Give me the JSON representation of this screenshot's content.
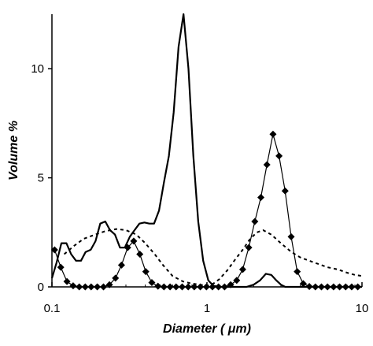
{
  "chart_data": {
    "type": "line",
    "xlabel": "Diameter ( μm)",
    "ylabel": "Volume %",
    "xscale": "log",
    "xlim": [
      0.1,
      10
    ],
    "ylim": [
      0,
      12.5
    ],
    "x_ticks": [
      0.1,
      1,
      10
    ],
    "x_tick_labels": [
      "0.1",
      "1",
      "10"
    ],
    "y_ticks": [
      0,
      5,
      10
    ],
    "y_tick_labels": [
      "0",
      "5",
      "10"
    ],
    "grid": false,
    "legend": "none",
    "series": [
      {
        "style": "solid-thick",
        "color": "#000000",
        "points": [
          [
            0.1,
            0.4
          ],
          [
            0.107,
            1.1
          ],
          [
            0.115,
            2.0
          ],
          [
            0.124,
            2.0
          ],
          [
            0.133,
            1.5
          ],
          [
            0.143,
            1.2
          ],
          [
            0.154,
            1.2
          ],
          [
            0.165,
            1.6
          ],
          [
            0.178,
            1.7
          ],
          [
            0.191,
            2.1
          ],
          [
            0.205,
            2.9
          ],
          [
            0.221,
            3.0
          ],
          [
            0.237,
            2.6
          ],
          [
            0.255,
            2.4
          ],
          [
            0.275,
            1.8
          ],
          [
            0.295,
            1.8
          ],
          [
            0.318,
            2.3
          ],
          [
            0.341,
            2.6
          ],
          [
            0.367,
            2.9
          ],
          [
            0.395,
            2.95
          ],
          [
            0.425,
            2.9
          ],
          [
            0.456,
            2.9
          ],
          [
            0.491,
            3.5
          ],
          [
            0.528,
            4.8
          ],
          [
            0.568,
            6.0
          ],
          [
            0.61,
            8.0
          ],
          [
            0.656,
            11.0
          ],
          [
            0.706,
            12.5
          ],
          [
            0.76,
            10.0
          ],
          [
            0.817,
            6.0
          ],
          [
            0.878,
            3.0
          ],
          [
            0.945,
            1.2
          ],
          [
            1.02,
            0.3
          ],
          [
            1.1,
            0.05
          ],
          [
            1.2,
            0.0
          ],
          [
            1.8,
            0.0
          ],
          [
            2.0,
            0.1
          ],
          [
            2.2,
            0.3
          ],
          [
            2.4,
            0.6
          ],
          [
            2.6,
            0.55
          ],
          [
            2.8,
            0.3
          ],
          [
            3.0,
            0.1
          ],
          [
            3.2,
            0.0
          ],
          [
            10,
            0.0
          ]
        ]
      },
      {
        "style": "solid-diamond",
        "color": "#000000",
        "points": [
          [
            0.104,
            1.7
          ],
          [
            0.114,
            0.9
          ],
          [
            0.125,
            0.25
          ],
          [
            0.137,
            0.05
          ],
          [
            0.15,
            0.0
          ],
          [
            0.164,
            0.0
          ],
          [
            0.179,
            0.0
          ],
          [
            0.196,
            0.0
          ],
          [
            0.215,
            0.0
          ],
          [
            0.235,
            0.1
          ],
          [
            0.257,
            0.4
          ],
          [
            0.281,
            1.0
          ],
          [
            0.308,
            1.8
          ],
          [
            0.337,
            2.1
          ],
          [
            0.369,
            1.5
          ],
          [
            0.403,
            0.7
          ],
          [
            0.441,
            0.2
          ],
          [
            0.483,
            0.03
          ],
          [
            0.528,
            0.0
          ],
          [
            0.578,
            0.0
          ],
          [
            0.632,
            0.0
          ],
          [
            0.692,
            0.0
          ],
          [
            0.757,
            0.0
          ],
          [
            0.828,
            0.0
          ],
          [
            0.906,
            0.0
          ],
          [
            0.992,
            0.0
          ],
          [
            1.085,
            0.0
          ],
          [
            1.187,
            0.0
          ],
          [
            1.299,
            0.0
          ],
          [
            1.421,
            0.1
          ],
          [
            1.555,
            0.3
          ],
          [
            1.701,
            0.8
          ],
          [
            1.861,
            1.8
          ],
          [
            2.036,
            3.0
          ],
          [
            2.228,
            4.1
          ],
          [
            2.437,
            5.6
          ],
          [
            2.667,
            7.0
          ],
          [
            2.918,
            6.0
          ],
          [
            3.192,
            4.4
          ],
          [
            3.493,
            2.3
          ],
          [
            3.821,
            0.7
          ],
          [
            4.181,
            0.15
          ],
          [
            4.574,
            0.02
          ],
          [
            5.005,
            0.0
          ],
          [
            5.476,
            0.0
          ],
          [
            5.991,
            0.0
          ],
          [
            6.555,
            0.0
          ],
          [
            7.171,
            0.0
          ],
          [
            7.846,
            0.0
          ],
          [
            8.585,
            0.0
          ],
          [
            9.393,
            0.0
          ]
        ]
      },
      {
        "style": "dashed",
        "color": "#000000",
        "points": [
          [
            0.12,
            1.5
          ],
          [
            0.14,
            1.9
          ],
          [
            0.16,
            2.2
          ],
          [
            0.19,
            2.4
          ],
          [
            0.22,
            2.55
          ],
          [
            0.26,
            2.65
          ],
          [
            0.3,
            2.6
          ],
          [
            0.35,
            2.4
          ],
          [
            0.4,
            2.0
          ],
          [
            0.46,
            1.5
          ],
          [
            0.52,
            1.0
          ],
          [
            0.6,
            0.5
          ],
          [
            0.7,
            0.25
          ],
          [
            0.8,
            0.15
          ],
          [
            0.9,
            0.1
          ],
          [
            1.0,
            0.05
          ],
          [
            1.1,
            0.15
          ],
          [
            1.2,
            0.35
          ],
          [
            1.35,
            0.75
          ],
          [
            1.5,
            1.2
          ],
          [
            1.7,
            1.7
          ],
          [
            1.9,
            2.2
          ],
          [
            2.1,
            2.5
          ],
          [
            2.3,
            2.6
          ],
          [
            2.6,
            2.4
          ],
          [
            3.0,
            2.0
          ],
          [
            3.5,
            1.6
          ],
          [
            4.0,
            1.35
          ],
          [
            5.0,
            1.1
          ],
          [
            6.0,
            0.9
          ],
          [
            7.0,
            0.8
          ],
          [
            8.0,
            0.65
          ],
          [
            9.0,
            0.55
          ],
          [
            10.0,
            0.5
          ]
        ]
      }
    ]
  }
}
